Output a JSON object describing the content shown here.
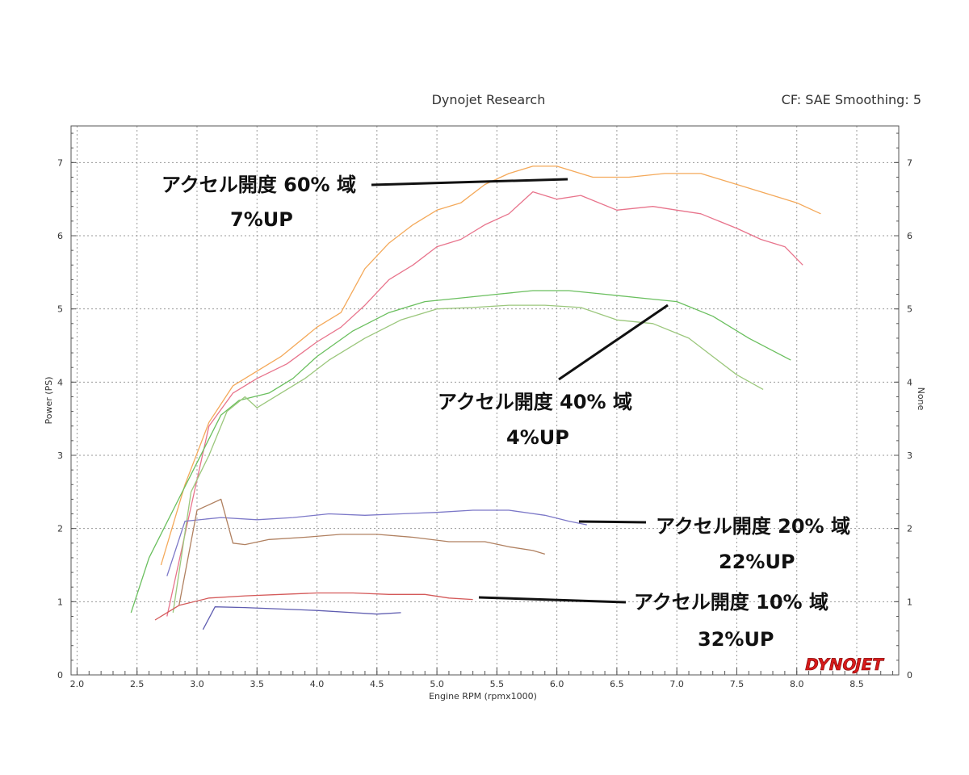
{
  "header": {
    "title": "Dynojet Research",
    "cf": "CF: SAE Smoothing: 5"
  },
  "logo": {
    "text_dyno": "DYNO",
    "text_jet": "JET"
  },
  "chart_data": {
    "type": "line",
    "xlabel": "Engine RPM (rpmx1000)",
    "ylabel": "Power (PS)",
    "y2label": "None",
    "xlim": [
      1.95,
      8.85
    ],
    "ylim": [
      0,
      7.5
    ],
    "x_ticks": [
      "2.0",
      "2.5",
      "3.0",
      "3.5",
      "4.0",
      "4.5",
      "5.0",
      "5.5",
      "6.0",
      "6.5",
      "7.0",
      "7.5",
      "8.0",
      "8.5"
    ],
    "y_ticks": [
      "0",
      "1",
      "2",
      "3",
      "4",
      "5",
      "6",
      "7"
    ],
    "grid": true,
    "series": [
      {
        "color": "#f4a95a",
        "x": [
          2.7,
          2.9,
          3.1,
          3.3,
          3.5,
          3.7,
          4.0,
          4.2,
          4.4,
          4.6,
          4.8,
          5.0,
          5.2,
          5.4,
          5.6,
          5.8,
          6.0,
          6.3,
          6.6,
          6.9,
          7.2,
          7.5,
          7.8,
          8.0,
          8.2
        ],
        "y": [
          1.5,
          2.6,
          3.45,
          3.95,
          4.15,
          4.35,
          4.75,
          4.95,
          5.55,
          5.9,
          6.15,
          6.35,
          6.45,
          6.7,
          6.85,
          6.95,
          6.95,
          6.8,
          6.8,
          6.85,
          6.85,
          6.7,
          6.55,
          6.45,
          6.3
        ]
      },
      {
        "color": "#e8748c",
        "x": [
          2.75,
          2.95,
          3.1,
          3.3,
          3.5,
          3.75,
          4.0,
          4.2,
          4.4,
          4.6,
          4.8,
          5.0,
          5.2,
          5.4,
          5.6,
          5.8,
          6.0,
          6.2,
          6.5,
          6.8,
          7.0,
          7.2,
          7.5,
          7.7,
          7.9,
          8.05
        ],
        "y": [
          0.8,
          2.3,
          3.4,
          3.85,
          4.05,
          4.25,
          4.55,
          4.75,
          5.05,
          5.4,
          5.6,
          5.85,
          5.95,
          6.15,
          6.3,
          6.6,
          6.5,
          6.55,
          6.35,
          6.4,
          6.35,
          6.3,
          6.1,
          5.95,
          5.85,
          5.6
        ]
      },
      {
        "color": "#6abf5e",
        "x": [
          2.45,
          2.6,
          2.8,
          3.0,
          3.2,
          3.35,
          3.6,
          3.8,
          4.0,
          4.3,
          4.6,
          4.9,
          5.2,
          5.5,
          5.8,
          6.1,
          6.4,
          6.7,
          7.0,
          7.3,
          7.6,
          7.95
        ],
        "y": [
          0.85,
          1.6,
          2.25,
          2.9,
          3.55,
          3.75,
          3.85,
          4.05,
          4.35,
          4.7,
          4.95,
          5.1,
          5.15,
          5.2,
          5.25,
          5.25,
          5.2,
          5.15,
          5.1,
          4.9,
          4.6,
          4.3
        ]
      },
      {
        "color": "#9bc77c",
        "x": [
          2.8,
          2.95,
          3.1,
          3.25,
          3.4,
          3.5,
          3.7,
          3.9,
          4.1,
          4.4,
          4.7,
          5.0,
          5.3,
          5.6,
          5.9,
          6.2,
          6.5,
          6.8,
          7.1,
          7.3,
          7.5,
          7.72
        ],
        "y": [
          0.85,
          2.5,
          3.0,
          3.6,
          3.8,
          3.65,
          3.85,
          4.05,
          4.3,
          4.6,
          4.85,
          5.0,
          5.02,
          5.05,
          5.05,
          5.02,
          4.85,
          4.8,
          4.6,
          4.35,
          4.1,
          3.9
        ]
      },
      {
        "color": "#7c78c8",
        "x": [
          2.75,
          2.9,
          3.2,
          3.5,
          3.8,
          4.1,
          4.4,
          4.7,
          5.0,
          5.3,
          5.6,
          5.9,
          6.1,
          6.25
        ],
        "y": [
          1.35,
          2.1,
          2.15,
          2.12,
          2.15,
          2.2,
          2.18,
          2.2,
          2.22,
          2.25,
          2.25,
          2.18,
          2.1,
          2.05
        ]
      },
      {
        "color": "#b08060",
        "x": [
          2.85,
          3.0,
          3.2,
          3.3,
          3.4,
          3.6,
          3.9,
          4.2,
          4.5,
          4.8,
          5.1,
          5.4,
          5.6,
          5.8,
          5.9
        ],
        "y": [
          0.95,
          2.25,
          2.4,
          1.8,
          1.78,
          1.85,
          1.88,
          1.92,
          1.92,
          1.88,
          1.82,
          1.82,
          1.75,
          1.7,
          1.65
        ]
      },
      {
        "color": "#d45a5a",
        "x": [
          2.65,
          2.85,
          3.1,
          3.4,
          3.7,
          4.0,
          4.3,
          4.6,
          4.9,
          5.1,
          5.3
        ],
        "y": [
          0.75,
          0.95,
          1.05,
          1.08,
          1.1,
          1.12,
          1.12,
          1.1,
          1.1,
          1.05,
          1.03
        ]
      },
      {
        "color": "#5e5cb0",
        "x": [
          3.05,
          3.15,
          3.4,
          3.7,
          4.0,
          4.3,
          4.5,
          4.7
        ],
        "y": [
          0.62,
          0.93,
          0.92,
          0.9,
          0.88,
          0.85,
          0.83,
          0.85
        ]
      }
    ]
  },
  "annotations": [
    {
      "line1": "アクセル開度 60% 域",
      "line2": "7%UP"
    },
    {
      "line1": "アクセル開度 40% 域",
      "line2": "4%UP"
    },
    {
      "line1": "アクセル開度 20% 域",
      "line2": "22%UP"
    },
    {
      "line1": "アクセル開度 10% 域",
      "line2": "32%UP"
    }
  ]
}
